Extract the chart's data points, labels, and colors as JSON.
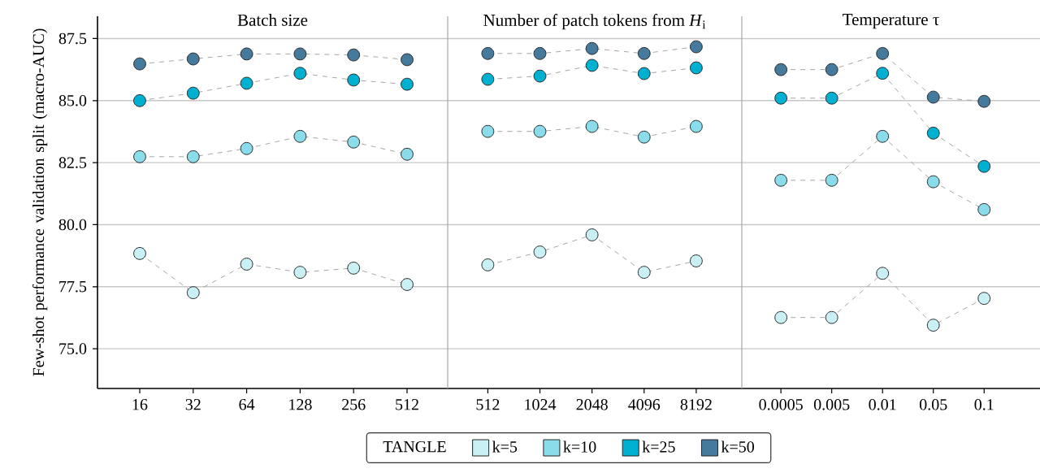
{
  "chart_data": [
    {
      "type": "line",
      "title": "Batch size",
      "ylabel": "Few-shot performance validation split (macro-AUC)",
      "categories": [
        "16",
        "32",
        "64",
        "128",
        "256",
        "512"
      ],
      "ylim": [
        73.4,
        88.4
      ],
      "yticks": [
        {
          "value": 75,
          "label": "75.0"
        },
        {
          "value": 77.5,
          "label": "77.5"
        },
        {
          "value": 80,
          "label": "80.0"
        },
        {
          "value": 82.5,
          "label": "82.5"
        },
        {
          "value": 85,
          "label": "85.0"
        },
        {
          "value": 87.5,
          "label": "87.5"
        }
      ],
      "grid": "y",
      "marker": "circle",
      "line_style": "dashed",
      "series": [
        {
          "color": "#c9f0f5",
          "values": [
            78.84,
            77.26,
            78.41,
            78.08,
            78.25,
            77.59
          ]
        },
        {
          "color": "#8bdcea",
          "values": [
            82.74,
            82.74,
            83.07,
            83.56,
            83.33,
            82.84
          ]
        },
        {
          "color": "#00b0d0",
          "values": [
            85.0,
            85.3,
            85.7,
            86.1,
            85.83,
            85.66
          ]
        },
        {
          "color": "#457a9c",
          "values": [
            86.48,
            86.68,
            86.88,
            86.88,
            86.84,
            86.65
          ]
        }
      ]
    },
    {
      "type": "line",
      "title": "Number of patch tokens from *H*$_{i}$",
      "categories": [
        "512",
        "1024",
        "2048",
        "4096",
        "8192"
      ],
      "ylim": [
        73.4,
        88.4
      ],
      "yticks": [
        {
          "value": 75,
          "label": null
        },
        {
          "value": 77.5,
          "label": null
        },
        {
          "value": 80,
          "label": null
        },
        {
          "value": 82.5,
          "label": null
        },
        {
          "value": 85,
          "label": null
        },
        {
          "value": 87.5,
          "label": null
        }
      ],
      "grid": "y",
      "marker": "circle",
      "line_style": "dashed",
      "tick_labels": "x",
      "legend": "bottom",
      "legend_title": "TANGLE",
      "series": [
        {
          "name": "k=5",
          "color": "#c9f0f5",
          "values": [
            78.38,
            78.9,
            79.59,
            78.08,
            78.54
          ]
        },
        {
          "name": "k=10",
          "color": "#8bdcea",
          "values": [
            83.76,
            83.76,
            83.96,
            83.53,
            83.96
          ]
        },
        {
          "name": "k=25",
          "color": "#00b0d0",
          "values": [
            85.86,
            85.99,
            86.42,
            86.09,
            86.32
          ]
        },
        {
          "name": "k=50",
          "color": "#457a9c",
          "values": [
            86.9,
            86.9,
            87.1,
            86.9,
            87.17
          ]
        }
      ]
    },
    {
      "type": "line",
      "title": "Temperature τ",
      "categories": [
        "0.0005",
        "0.005",
        "0.01",
        "0.05",
        "0.1"
      ],
      "ylim": [
        73.4,
        88.4
      ],
      "yticks": [
        {
          "value": 75,
          "label": null
        },
        {
          "value": 77.5,
          "label": null
        },
        {
          "value": 80,
          "label": null
        },
        {
          "value": 82.5,
          "label": null
        },
        {
          "value": 85,
          "label": null
        },
        {
          "value": 87.5,
          "label": null
        }
      ],
      "grid": "y",
      "marker": "circle",
      "line_style": "dashed",
      "tick_labels": "x",
      "series": [
        {
          "color": "#c9f0f5",
          "values": [
            76.26,
            76.26,
            78.04,
            75.95,
            77.03
          ]
        },
        {
          "color": "#8bdcea",
          "values": [
            81.79,
            81.79,
            83.56,
            81.73,
            80.61
          ]
        },
        {
          "color": "#00b0d0",
          "values": [
            85.1,
            85.1,
            86.1,
            83.69,
            82.35
          ]
        },
        {
          "color": "#457a9c",
          "values": [
            86.25,
            86.25,
            86.9,
            85.14,
            84.97
          ]
        }
      ]
    }
  ]
}
